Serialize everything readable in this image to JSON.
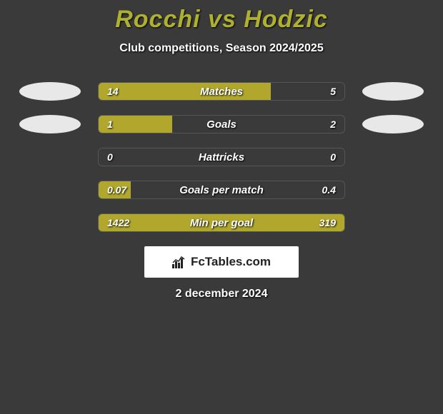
{
  "title": "Rocchi vs Hodzic",
  "subtitle": "Club competitions, Season 2024/2025",
  "date": "2 december 2024",
  "attribution": "FcTables.com",
  "colors": {
    "background": "#3a3a3a",
    "bar_fill": "#b0a72c",
    "title_color": "#b0b030",
    "text_color": "#ffffff",
    "avatar_color": "#e8e8e8"
  },
  "rows": [
    {
      "label": "Matches",
      "left_value": "14",
      "right_value": "5",
      "left_pct": 70,
      "right_pct": 0,
      "show_avatars": true
    },
    {
      "label": "Goals",
      "left_value": "1",
      "right_value": "2",
      "left_pct": 30,
      "right_pct": 0,
      "show_avatars": true
    },
    {
      "label": "Hattricks",
      "left_value": "0",
      "right_value": "0",
      "left_pct": 0,
      "right_pct": 0,
      "show_avatars": false
    },
    {
      "label": "Goals per match",
      "left_value": "0.07",
      "right_value": "0.4",
      "left_pct": 13,
      "right_pct": 0,
      "show_avatars": false
    },
    {
      "label": "Min per goal",
      "left_value": "1422",
      "right_value": "319",
      "left_pct": 77,
      "right_pct": 23,
      "show_avatars": false
    }
  ]
}
